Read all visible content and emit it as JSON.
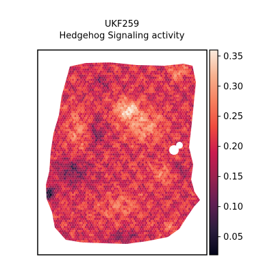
{
  "chart_data": {
    "type": "heatmap",
    "title": "UKF259",
    "subtitle": "Hedgehog Signaling activity",
    "xlabel": "",
    "ylabel": "",
    "grid": false,
    "colormap": "rocket",
    "colormap_stops": [
      "#03051a",
      "#2c1e3e",
      "#611f53",
      "#99214f",
      "#cb1b4f",
      "#ef4b3f",
      "#f6805f",
      "#f7b18f",
      "#faebdd"
    ],
    "colorbar": {
      "vmin": 0.02,
      "vmax": 0.36,
      "ticks": [
        "0.05",
        "0.10",
        "0.15",
        "0.20",
        "0.25",
        "0.30",
        "0.35"
      ],
      "placement": "right"
    },
    "value_range_observed": [
      0.02,
      0.36
    ],
    "missing_color": "#ffffff"
  }
}
